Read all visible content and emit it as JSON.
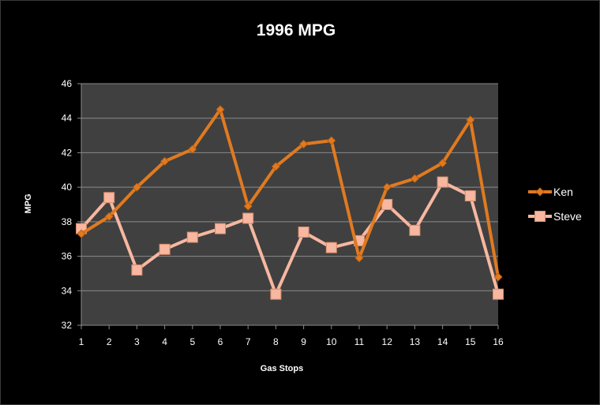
{
  "chart_data": {
    "type": "line",
    "title": "1996  MPG",
    "xlabel": "Gas Stops",
    "ylabel": "MPG",
    "categories": [
      "1",
      "2",
      "3",
      "4",
      "5",
      "6",
      "7",
      "8",
      "9",
      "10",
      "11",
      "12",
      "13",
      "14",
      "15",
      "16"
    ],
    "ylim": [
      32,
      46
    ],
    "yticks": [
      32,
      34,
      36,
      38,
      40,
      42,
      44,
      46
    ],
    "grid": true,
    "legend_position": "right",
    "series": [
      {
        "name": "Ken",
        "color": "#e07a20",
        "marker": "diamond",
        "values": [
          37.3,
          38.3,
          40.0,
          41.5,
          42.2,
          44.5,
          38.9,
          41.2,
          42.5,
          42.7,
          35.9,
          40.0,
          40.5,
          41.4,
          43.9,
          34.8
        ]
      },
      {
        "name": "Steve",
        "color": "#f7b7a0",
        "marker": "square",
        "values": [
          37.6,
          39.4,
          35.2,
          36.4,
          37.1,
          37.6,
          38.2,
          33.8,
          37.4,
          36.5,
          36.9,
          39.0,
          37.5,
          40.3,
          39.5,
          33.8
        ]
      }
    ]
  }
}
